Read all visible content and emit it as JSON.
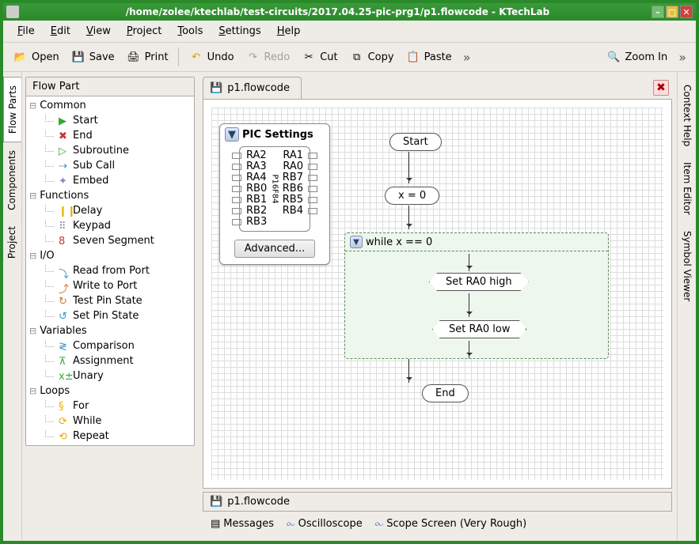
{
  "titlebar": {
    "text": "/home/zolee/ktechlab/test-circuits/2017.04.25-pic-prg1/p1.flowcode - KTechLab"
  },
  "menu": {
    "file": "File",
    "edit": "Edit",
    "view": "View",
    "project": "Project",
    "tools": "Tools",
    "settings": "Settings",
    "help": "Help"
  },
  "toolbar": {
    "open": "Open",
    "save": "Save",
    "print": "Print",
    "undo": "Undo",
    "redo": "Redo",
    "cut": "Cut",
    "copy": "Copy",
    "paste": "Paste",
    "zoomin": "Zoom In"
  },
  "left_tabs": {
    "flowparts": "Flow Parts",
    "components": "Components",
    "project": "Project"
  },
  "right_tabs": {
    "contexthelp": "Context Help",
    "itemeditor": "Item Editor",
    "symbolviewer": "Symbol Viewer"
  },
  "sidebar": {
    "title": "Flow Part",
    "cats": {
      "common": "Common",
      "functions": "Functions",
      "io": "I/O",
      "variables": "Variables",
      "loops": "Loops"
    },
    "items": {
      "start": "Start",
      "end": "End",
      "subroutine": "Subroutine",
      "subcall": "Sub Call",
      "embed": "Embed",
      "delay": "Delay",
      "keypad": "Keypad",
      "sevenseg": "Seven Segment",
      "readport": "Read from Port",
      "writeport": "Write to Port",
      "testpin": "Test Pin State",
      "setpin": "Set Pin State",
      "comparison": "Comparison",
      "assignment": "Assignment",
      "unary": "Unary",
      "for": "For",
      "while": "While",
      "repeat": "Repeat"
    }
  },
  "doc": {
    "tab": "p1.flowcode",
    "mini": "p1.flowcode"
  },
  "pic": {
    "title": "PIC Settings",
    "chip": "P16F84",
    "advanced": "Advanced...",
    "pins_l": [
      "RA2",
      "RA3",
      "RA4",
      "RB0",
      "RB1",
      "RB2",
      "RB3"
    ],
    "pins_r": [
      "",
      "RA1",
      "RA0",
      "RB7",
      "RB6",
      "RB5",
      "RB4"
    ]
  },
  "flow": {
    "start": "Start",
    "x0": "x = 0",
    "while": "while x == 0",
    "set_high": "Set RA0 high",
    "set_low": "Set RA0 low",
    "end": "End"
  },
  "bottom": {
    "messages": "Messages",
    "oscilloscope": "Oscilloscope",
    "scope": "Scope Screen (Very Rough)"
  }
}
